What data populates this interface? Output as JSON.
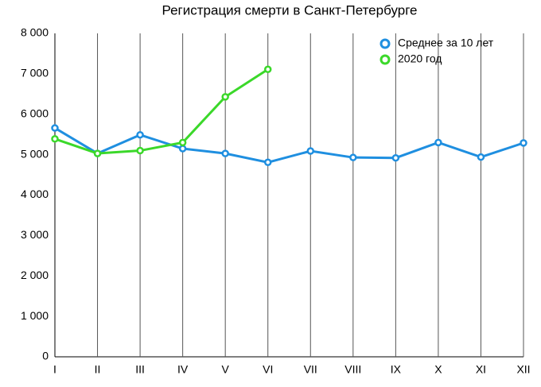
{
  "chart_data": {
    "type": "line",
    "title": "Регистрация смерти в Санкт-Петербурге",
    "categories": [
      "I",
      "II",
      "III",
      "IV",
      "V",
      "VI",
      "VII",
      "VIII",
      "IX",
      "X",
      "XI",
      "XII"
    ],
    "series": [
      {
        "name": "Среднее за 10 лет",
        "color": "#1f8fe0",
        "values": [
          5660,
          5030,
          5490,
          5150,
          5030,
          4810,
          5090,
          4930,
          4920,
          5300,
          4940,
          5290
        ]
      },
      {
        "name": "2020 год",
        "color": "#3bd82a",
        "values": [
          5390,
          5030,
          5100,
          5300,
          6430,
          7110,
          null,
          null,
          null,
          null,
          null,
          null
        ]
      }
    ],
    "ylim": [
      0,
      8000
    ],
    "yticks": [
      0,
      {
        "value": 1000,
        "label": "1 000"
      },
      {
        "value": 2000,
        "label": "2 000"
      },
      {
        "value": 3000,
        "label": "3 000"
      },
      {
        "value": 4000,
        "label": "4 000"
      },
      {
        "value": 5000,
        "label": "5 000"
      },
      {
        "value": 6000,
        "label": "6 000"
      },
      {
        "value": 7000,
        "label": "7 000"
      },
      {
        "value": 8000,
        "label": "8 000"
      }
    ],
    "grid": true,
    "legend": "top-right"
  }
}
